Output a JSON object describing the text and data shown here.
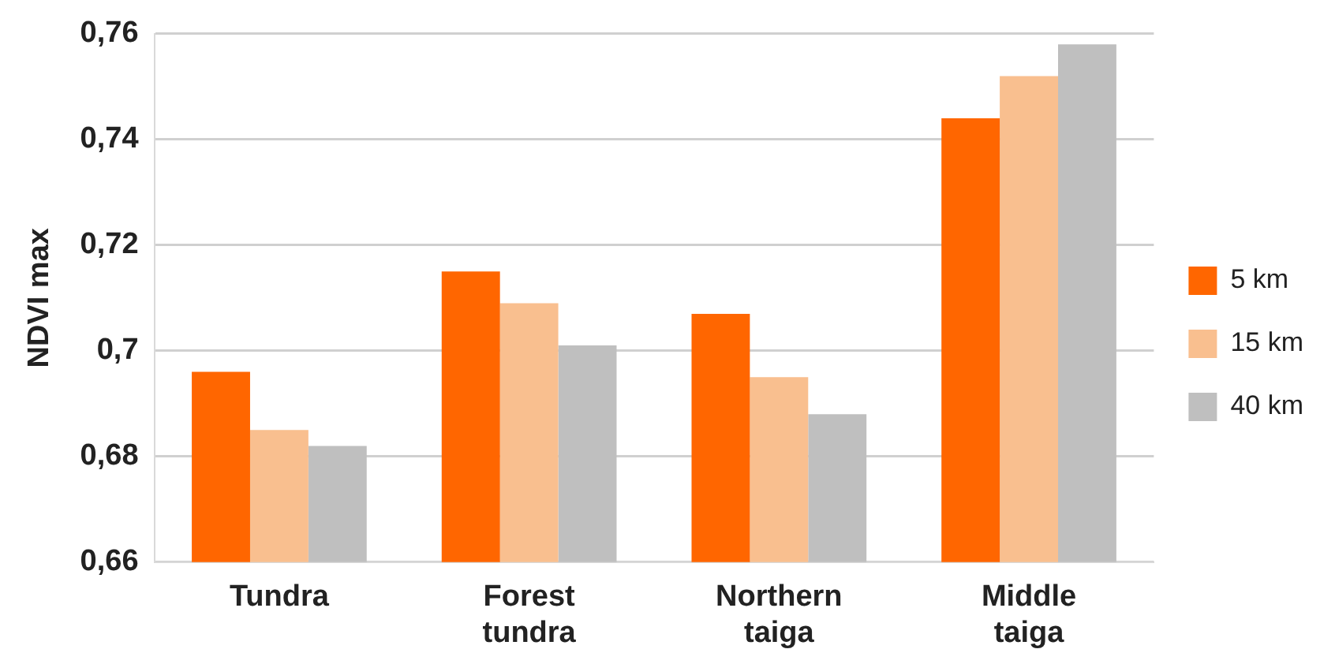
{
  "chart_data": {
    "type": "bar",
    "ylabel": "NDVI max",
    "categories": [
      "Tundra",
      "Forest tundra",
      "Northern taiga",
      "Middle taiga"
    ],
    "series": [
      {
        "name": "5 km",
        "color": "#ff6600",
        "values": [
          0.696,
          0.715,
          0.707,
          0.744
        ]
      },
      {
        "name": "15 km",
        "color": "#f9bf8f",
        "values": [
          0.685,
          0.709,
          0.695,
          0.752
        ]
      },
      {
        "name": "40 km",
        "color": "#bfbfbf",
        "values": [
          0.682,
          0.701,
          0.688,
          0.758
        ]
      }
    ],
    "ylim": [
      0.66,
      0.76
    ],
    "yticks": [
      {
        "value": 0.66,
        "label": "0,66"
      },
      {
        "value": 0.68,
        "label": "0,68"
      },
      {
        "value": 0.7,
        "label": "0,7"
      },
      {
        "value": 0.72,
        "label": "0,72"
      },
      {
        "value": 0.74,
        "label": "0,74"
      },
      {
        "value": 0.76,
        "label": "0,76"
      }
    ],
    "grid": "y",
    "legend": "right"
  }
}
